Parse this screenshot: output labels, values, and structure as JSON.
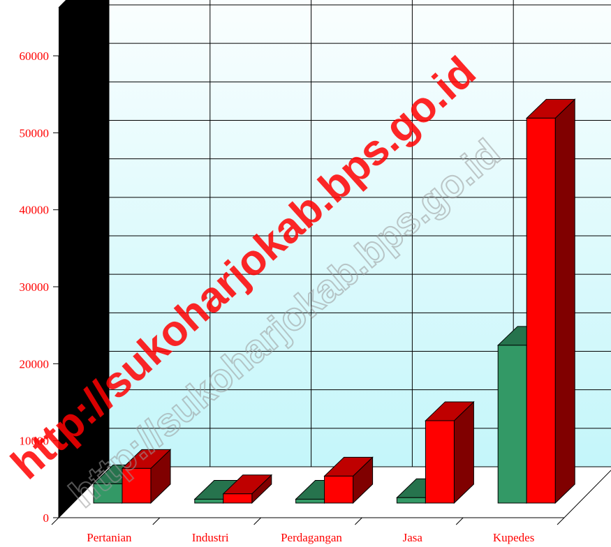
{
  "chart_data": {
    "type": "bar",
    "title": "",
    "xlabel": "",
    "ylabel": "",
    "categories": [
      "Pertanian",
      "Industri",
      "Perdagangan",
      "Jasa",
      "Kupedes"
    ],
    "series": [
      {
        "values": [
          2500,
          500,
          500,
          700,
          20500
        ],
        "color": "#339966"
      },
      {
        "values": [
          4500,
          1200,
          3500,
          10700,
          50000
        ],
        "color": "#ff0000"
      }
    ],
    "ylim": [
      0,
      60000
    ],
    "yticks": [
      "0",
      "10000",
      "20000",
      "30000",
      "40000",
      "50000",
      "60000"
    ],
    "grid": true,
    "legend": "none",
    "style": "3d"
  },
  "watermarks": [
    "http://sukoharjokab.bps.go.id",
    "http://sukoharjokab.bps.go.id"
  ],
  "colors": {
    "tick_text": "#ff0000",
    "wall_top": "#ffffff",
    "wall_bottom": "#c4f6fa",
    "side_wall": "#000000",
    "floor": "#ffffff",
    "axis": "#000000"
  }
}
